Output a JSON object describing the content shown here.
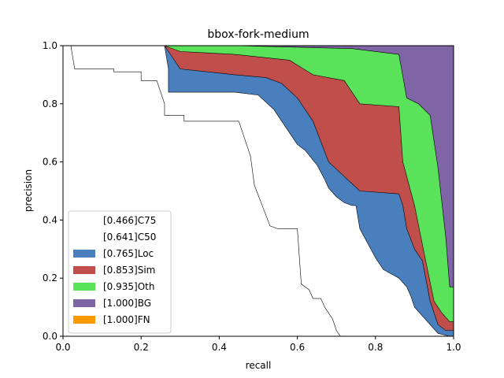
{
  "chart_data": {
    "type": "area",
    "title": "bbox-fork-medium",
    "xlabel": "recall",
    "ylabel": "precision",
    "xlim": [
      0,
      1
    ],
    "ylim": [
      0,
      1
    ],
    "xticks": [
      "0.0",
      "0.2",
      "0.4",
      "0.6",
      "0.8",
      "1.0"
    ],
    "yticks": [
      "0.0",
      "0.2",
      "0.4",
      "0.6",
      "0.8",
      "1.0"
    ],
    "grid": false,
    "legend_position": "lower-left",
    "series": [
      {
        "name": "[1.000]FN",
        "color": "#ff9900",
        "points": [
          [
            0.0,
            1.0
          ],
          [
            1.0,
            1.0
          ]
        ]
      },
      {
        "name": "[1.000]BG",
        "color": "#7f64a6",
        "points": [
          [
            0.0,
            1.0
          ],
          [
            0.26,
            1.0
          ],
          [
            0.3,
            1.0
          ],
          [
            0.44,
            1.0
          ],
          [
            0.74,
            1.0
          ],
          [
            0.86,
            1.0
          ],
          [
            0.9,
            1.0
          ],
          [
            0.93,
            1.0
          ],
          [
            0.96,
            1.0
          ],
          [
            0.98,
            1.0
          ],
          [
            1.0,
            1.0
          ]
        ]
      },
      {
        "name": "[0.935]Oth",
        "color": "#5ae35a",
        "points": [
          [
            0.0,
            1.0
          ],
          [
            0.26,
            1.0
          ],
          [
            0.3,
            1.0
          ],
          [
            0.44,
            1.0
          ],
          [
            0.74,
            0.99
          ],
          [
            0.86,
            0.97
          ],
          [
            0.88,
            0.82
          ],
          [
            0.91,
            0.8
          ],
          [
            0.94,
            0.76
          ],
          [
            0.96,
            0.58
          ],
          [
            0.98,
            0.34
          ],
          [
            0.99,
            0.17
          ],
          [
            1.0,
            0.17
          ]
        ]
      },
      {
        "name": "[0.853]Sim",
        "color": "#c04e4a",
        "points": [
          [
            0.0,
            1.0
          ],
          [
            0.26,
            1.0
          ],
          [
            0.3,
            0.98
          ],
          [
            0.44,
            0.97
          ],
          [
            0.58,
            0.95
          ],
          [
            0.64,
            0.9
          ],
          [
            0.72,
            0.88
          ],
          [
            0.76,
            0.8
          ],
          [
            0.86,
            0.79
          ],
          [
            0.87,
            0.6
          ],
          [
            0.9,
            0.45
          ],
          [
            0.93,
            0.25
          ],
          [
            0.95,
            0.12
          ],
          [
            0.97,
            0.08
          ],
          [
            0.99,
            0.05
          ],
          [
            1.0,
            0.05
          ]
        ]
      },
      {
        "name": "[0.765]Loc",
        "color": "#4a7fbd",
        "points": [
          [
            0.0,
            1.0
          ],
          [
            0.26,
            1.0
          ],
          [
            0.28,
            0.96
          ],
          [
            0.3,
            0.92
          ],
          [
            0.44,
            0.9
          ],
          [
            0.52,
            0.89
          ],
          [
            0.56,
            0.87
          ],
          [
            0.6,
            0.82
          ],
          [
            0.64,
            0.74
          ],
          [
            0.68,
            0.6
          ],
          [
            0.72,
            0.55
          ],
          [
            0.76,
            0.5
          ],
          [
            0.86,
            0.49
          ],
          [
            0.87,
            0.45
          ],
          [
            0.88,
            0.37
          ],
          [
            0.9,
            0.3
          ],
          [
            0.92,
            0.26
          ],
          [
            0.94,
            0.12
          ],
          [
            0.96,
            0.04
          ],
          [
            0.98,
            0.02
          ],
          [
            1.0,
            0.02
          ]
        ]
      },
      {
        "name": "[0.641]C50",
        "color": "#ffffff",
        "points": [
          [
            0.0,
            1.0
          ],
          [
            0.26,
            1.0
          ],
          [
            0.27,
            0.92
          ],
          [
            0.27,
            0.84
          ],
          [
            0.44,
            0.84
          ],
          [
            0.5,
            0.83
          ],
          [
            0.54,
            0.78
          ],
          [
            0.56,
            0.74
          ],
          [
            0.6,
            0.66
          ],
          [
            0.62,
            0.64
          ],
          [
            0.65,
            0.59
          ],
          [
            0.67,
            0.54
          ],
          [
            0.68,
            0.51
          ],
          [
            0.7,
            0.48
          ],
          [
            0.72,
            0.46
          ],
          [
            0.74,
            0.45
          ],
          [
            0.75,
            0.45
          ],
          [
            0.76,
            0.37
          ],
          [
            0.8,
            0.27
          ],
          [
            0.82,
            0.23
          ],
          [
            0.86,
            0.2
          ],
          [
            0.88,
            0.17
          ],
          [
            0.89,
            0.14
          ],
          [
            0.9,
            0.1
          ],
          [
            0.92,
            0.07
          ],
          [
            0.94,
            0.04
          ],
          [
            0.96,
            0.01
          ],
          [
            0.99,
            0.0
          ],
          [
            1.0,
            0.0
          ]
        ]
      },
      {
        "name": "[0.466]C75",
        "color": "#ffffff",
        "points": [
          [
            0.0,
            1.0
          ],
          [
            0.02,
            1.0
          ],
          [
            0.03,
            0.92
          ],
          [
            0.13,
            0.92
          ],
          [
            0.13,
            0.91
          ],
          [
            0.2,
            0.91
          ],
          [
            0.2,
            0.88
          ],
          [
            0.24,
            0.88
          ],
          [
            0.26,
            0.8
          ],
          [
            0.26,
            0.76
          ],
          [
            0.31,
            0.76
          ],
          [
            0.31,
            0.74
          ],
          [
            0.45,
            0.74
          ],
          [
            0.46,
            0.7
          ],
          [
            0.47,
            0.66
          ],
          [
            0.48,
            0.62
          ],
          [
            0.49,
            0.52
          ],
          [
            0.51,
            0.45
          ],
          [
            0.53,
            0.38
          ],
          [
            0.55,
            0.37
          ],
          [
            0.6,
            0.37
          ],
          [
            0.61,
            0.18
          ],
          [
            0.63,
            0.16
          ],
          [
            0.64,
            0.13
          ],
          [
            0.66,
            0.13
          ],
          [
            0.67,
            0.1
          ],
          [
            0.69,
            0.06
          ],
          [
            0.7,
            0.02
          ],
          [
            0.71,
            0.0
          ],
          [
            1.0,
            0.0
          ]
        ]
      }
    ]
  }
}
